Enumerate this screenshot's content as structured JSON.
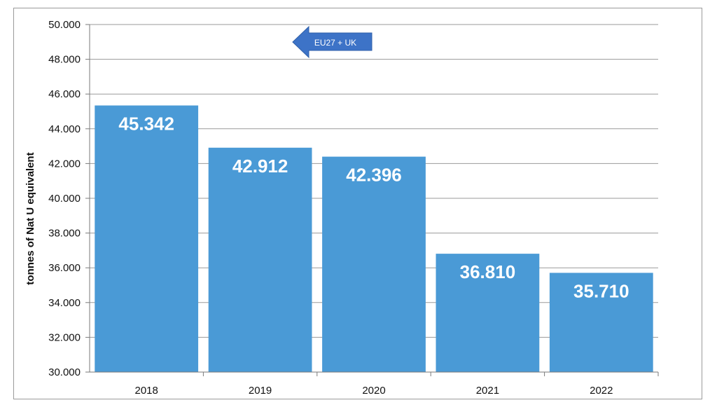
{
  "chart_data": {
    "type": "bar",
    "categories": [
      "2018",
      "2019",
      "2020",
      "2021",
      "2022"
    ],
    "values": [
      45342,
      42912,
      42396,
      36810,
      35710
    ],
    "value_labels": [
      "45.342",
      "42.912",
      "42.396",
      "36.810",
      "35.710"
    ],
    "ylabel": "tonnes of Nat U equivalent",
    "xlabel": "",
    "title": "",
    "ylim": [
      30000,
      50000
    ],
    "y_ticks": [
      30000,
      32000,
      34000,
      36000,
      38000,
      40000,
      42000,
      44000,
      46000,
      48000,
      50000
    ],
    "y_tick_labels": [
      "30.000",
      "32.000",
      "34.000",
      "36.000",
      "38.000",
      "40.000",
      "42.000",
      "44.000",
      "46.000",
      "48.000",
      "50.000"
    ],
    "grid": true,
    "legend": "none",
    "bar_color": "#4a9ad6",
    "annotation": {
      "text": "EU27 + UK",
      "shape": "left-arrow",
      "color": "#3d73c7"
    }
  }
}
